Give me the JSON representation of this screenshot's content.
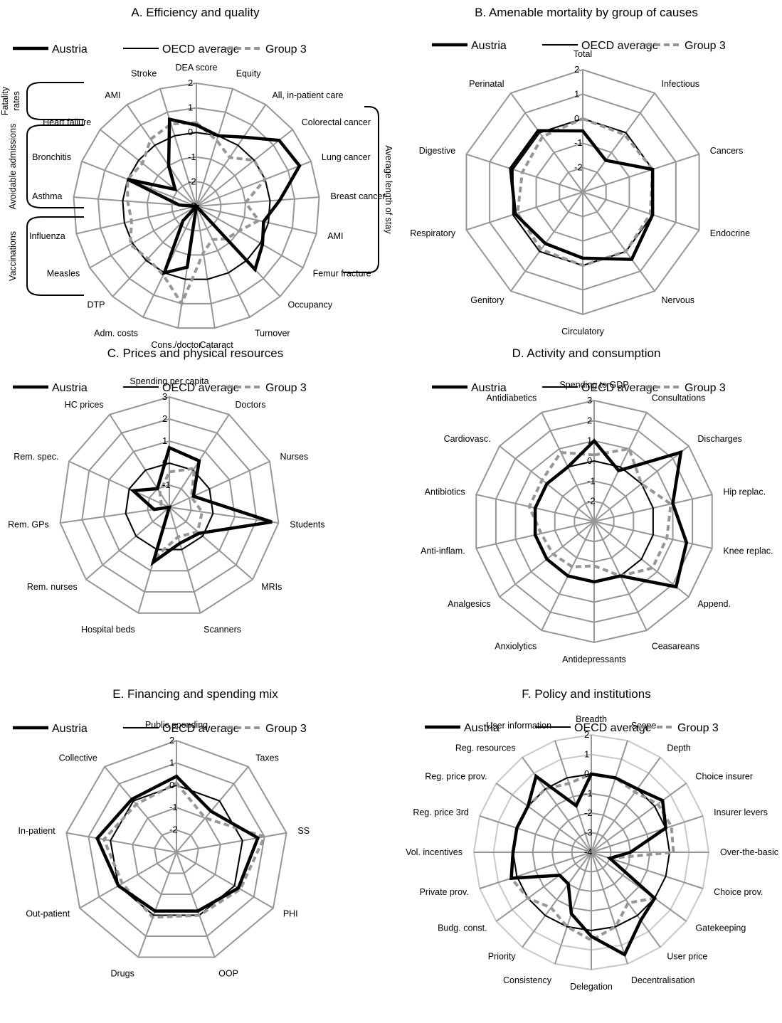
{
  "colors": {
    "austria": "#000000",
    "oecd": "#000000",
    "group3": "#969696",
    "grid": "#969696",
    "grid_light": "#c8c8c8"
  },
  "legend": {
    "austria": "Austria",
    "oecd": "OECD average",
    "group3": "Group 3"
  },
  "chart_data": [
    {
      "id": "A",
      "type": "radar",
      "title": "A. Efficiency and quality",
      "rmin": -3,
      "rmax": 2,
      "ticks": [
        -3,
        -2,
        -1,
        0,
        1,
        2
      ],
      "axes": [
        "DEA score",
        "Equity",
        "All, in-patient care",
        "Colorectal cancer",
        "Lung cancer",
        "Breast cancer",
        "AMI",
        "Femur fracture",
        "Occupancy",
        "Turnover",
        "Cataract",
        "Cons./doctor",
        "Adm. costs",
        "DTP",
        "Measles",
        "Influenza",
        "Asthma",
        "Bronchitis",
        "Heart failure",
        "AMI",
        "Stroke"
      ],
      "series": [
        {
          "name": "Austria",
          "values": [
            0.3,
            0.0,
            0.4,
            1.3,
            1.5,
            0.4,
            -0.2,
            0.1,
            0.5,
            -3,
            -3,
            -0.5,
            0.0,
            -2.2,
            -3,
            -3,
            -2.3,
            0.0,
            -1.9,
            -1.0,
            0.7
          ]
        },
        {
          "name": "OECD average",
          "values": [
            0,
            0,
            0,
            0,
            0,
            0,
            0,
            0,
            0,
            0,
            0,
            0,
            0,
            0,
            0,
            0,
            0,
            0,
            0,
            0,
            0
          ]
        },
        {
          "name": "Group 3",
          "values": [
            0.4,
            -0.2,
            -0.6,
            0.0,
            0.0,
            -1.0,
            -0.4,
            -1.0,
            -1.2,
            -1.5,
            -1.1,
            1.0,
            0.1,
            -0.1,
            0.1,
            -0.3,
            -0.2,
            0.0,
            -0.2,
            0.3,
            0.5
          ]
        }
      ],
      "brackets": [
        {
          "label": "Fatality rates",
          "side": "left"
        },
        {
          "label": "Avoidable admissions",
          "side": "left"
        },
        {
          "label": "Vaccinations",
          "side": "left"
        },
        {
          "label": "Average length of stay",
          "side": "right"
        }
      ]
    },
    {
      "id": "B",
      "type": "radar",
      "title": "B. Amenable mortality by group of causes",
      "rmin": -3,
      "rmax": 2,
      "ticks": [
        -2,
        -1,
        0,
        1,
        2
      ],
      "axes": [
        "Total",
        "Infectious",
        "Cancers",
        "Endocrine",
        "Nervous",
        "Circulatory",
        "Genitory",
        "Respiratory",
        "Digestive",
        "Perinatal"
      ],
      "series": [
        {
          "name": "Austria",
          "values": [
            -0.5,
            -1.4,
            0.0,
            0.0,
            0.4,
            -0.3,
            -0.4,
            -0.1,
            0.1,
            0.1
          ]
        },
        {
          "name": "OECD average",
          "values": [
            0,
            0,
            0,
            0,
            0,
            0,
            0,
            0,
            0,
            0
          ]
        },
        {
          "name": "Group 3",
          "values": [
            0.0,
            -0.1,
            0.0,
            -0.1,
            0.0,
            0.0,
            -0.1,
            -0.2,
            -0.4,
            -0.2
          ]
        }
      ]
    },
    {
      "id": "C",
      "type": "radar",
      "title": "C. Prices and physical resources",
      "rmin": -2,
      "rmax": 3,
      "ticks": [
        -1,
        0,
        1,
        2,
        3
      ],
      "axes": [
        "Spending per capita",
        "Doctors",
        "Nurses",
        "Students",
        "MRIs",
        "Scanners",
        "Hospital beds",
        "Rem. nurses",
        "Rem. GPs",
        "Rem. spec.",
        "HC prices"
      ],
      "series": [
        {
          "name": "Austria",
          "values": [
            0.7,
            0.5,
            -0.8,
            2.7,
            -0.2,
            -0.3,
            0.6,
            -2.0,
            -1.3,
            -0.2,
            -1.0
          ]
        },
        {
          "name": "OECD average",
          "values": [
            0,
            0,
            0,
            0,
            0,
            0,
            0,
            0,
            0,
            0,
            0
          ]
        },
        {
          "name": "Group 3",
          "values": [
            -0.4,
            0.1,
            -0.9,
            -0.5,
            -0.3,
            -0.6,
            0.4,
            -2.0,
            -1.5,
            -1.6,
            -1.2
          ]
        }
      ]
    },
    {
      "id": "D",
      "type": "radar",
      "title": "D. Activity and consumption",
      "rmin": -3,
      "rmax": 3,
      "ticks": [
        -2,
        -1,
        0,
        1,
        2,
        3
      ],
      "axes": [
        "Spending to GDP",
        "Consultations",
        "Discharges",
        "Hip replac.",
        "Knee replac.",
        "Append.",
        "Ceasareans",
        "Antidepressants",
        "Anxiolytics",
        "Analgesics",
        "Anti-inflam.",
        "Antibiotics",
        "Cardiovasc.",
        "Antidiabetics"
      ],
      "series": [
        {
          "name": "Austria",
          "values": [
            1.0,
            -0.2,
            2.5,
            1.0,
            1.7,
            2.2,
            0.0,
            0.0,
            0.0,
            0.0,
            0.0,
            0.0,
            0.0,
            0.0
          ]
        },
        {
          "name": "OECD average",
          "values": [
            0,
            0,
            0,
            0,
            0,
            0,
            0,
            0,
            0,
            0,
            0,
            0,
            0,
            0
          ]
        },
        {
          "name": "Group 3",
          "values": [
            0.3,
            1.0,
            0.0,
            0.9,
            0.7,
            0.7,
            0.0,
            -0.8,
            -0.5,
            -0.4,
            -0.3,
            0.3,
            0.3,
            0.8
          ]
        }
      ]
    },
    {
      "id": "E",
      "type": "radar",
      "title": "E. Financing and spending mix",
      "rmin": -3,
      "rmax": 2,
      "ticks": [
        -2,
        -1,
        0,
        1,
        2
      ],
      "axes": [
        "Public spending",
        "Taxes",
        "SS",
        "PHI",
        "OOP",
        "Drugs",
        "Out-patient",
        "In-patient",
        "Collective"
      ],
      "series": [
        {
          "name": "Austria",
          "values": [
            0.4,
            -0.6,
            0.7,
            0.2,
            -0.2,
            -0.2,
            0.0,
            0.6,
            0.1
          ]
        },
        {
          "name": "OECD average",
          "values": [
            0,
            0,
            0,
            0,
            0,
            0,
            0,
            0,
            0
          ]
        },
        {
          "name": "Group 3",
          "values": [
            0.1,
            -1.0,
            1.0,
            0.3,
            0.0,
            0.1,
            -0.2,
            0.3,
            -0.2
          ]
        }
      ]
    },
    {
      "id": "F",
      "type": "radar",
      "title": "F. Policy and institutions",
      "rmin": -4,
      "rmax": 2,
      "ticks": [
        -4,
        -3,
        -2,
        -1,
        0,
        1,
        2
      ],
      "axes": [
        "Breadth",
        "Scope",
        "Depth",
        "Choice insurer",
        "Insurer levers",
        "Over-the-basic",
        "Choice prov.",
        "Gatekeeping",
        "User price",
        "Decentralisation",
        "Delegation",
        "Consistency",
        "Priority",
        "Budg. const.",
        "Private prov.",
        "Vol. incentives",
        "Reg. price 3rd",
        "Reg. price prov.",
        "Reg. resources",
        "User information"
      ],
      "series": [
        {
          "name": "Austria",
          "values": [
            0.0,
            0.0,
            0.0,
            0.5,
            0.0,
            -2.0,
            -3.0,
            0.0,
            0.3,
            1.5,
            0.3,
            -0.7,
            -2.0,
            -2.0,
            0.3,
            0.0,
            0.0,
            0.0,
            0.8,
            -1.5
          ]
        },
        {
          "name": "OECD average",
          "values": [
            0,
            0,
            0,
            0,
            0,
            0,
            0,
            0,
            0,
            0,
            0,
            0,
            0,
            0,
            0,
            0,
            0,
            0,
            0,
            0
          ]
        },
        {
          "name": "Group 3",
          "values": [
            0.0,
            0.0,
            -0.2,
            0.2,
            0.3,
            0.2,
            -3.0,
            0.0,
            -0.8,
            0.0,
            0.5,
            0.0,
            -0.5,
            0.0,
            0.3,
            0.0,
            0.0,
            0.0,
            0.0,
            -0.3
          ]
        }
      ]
    }
  ]
}
